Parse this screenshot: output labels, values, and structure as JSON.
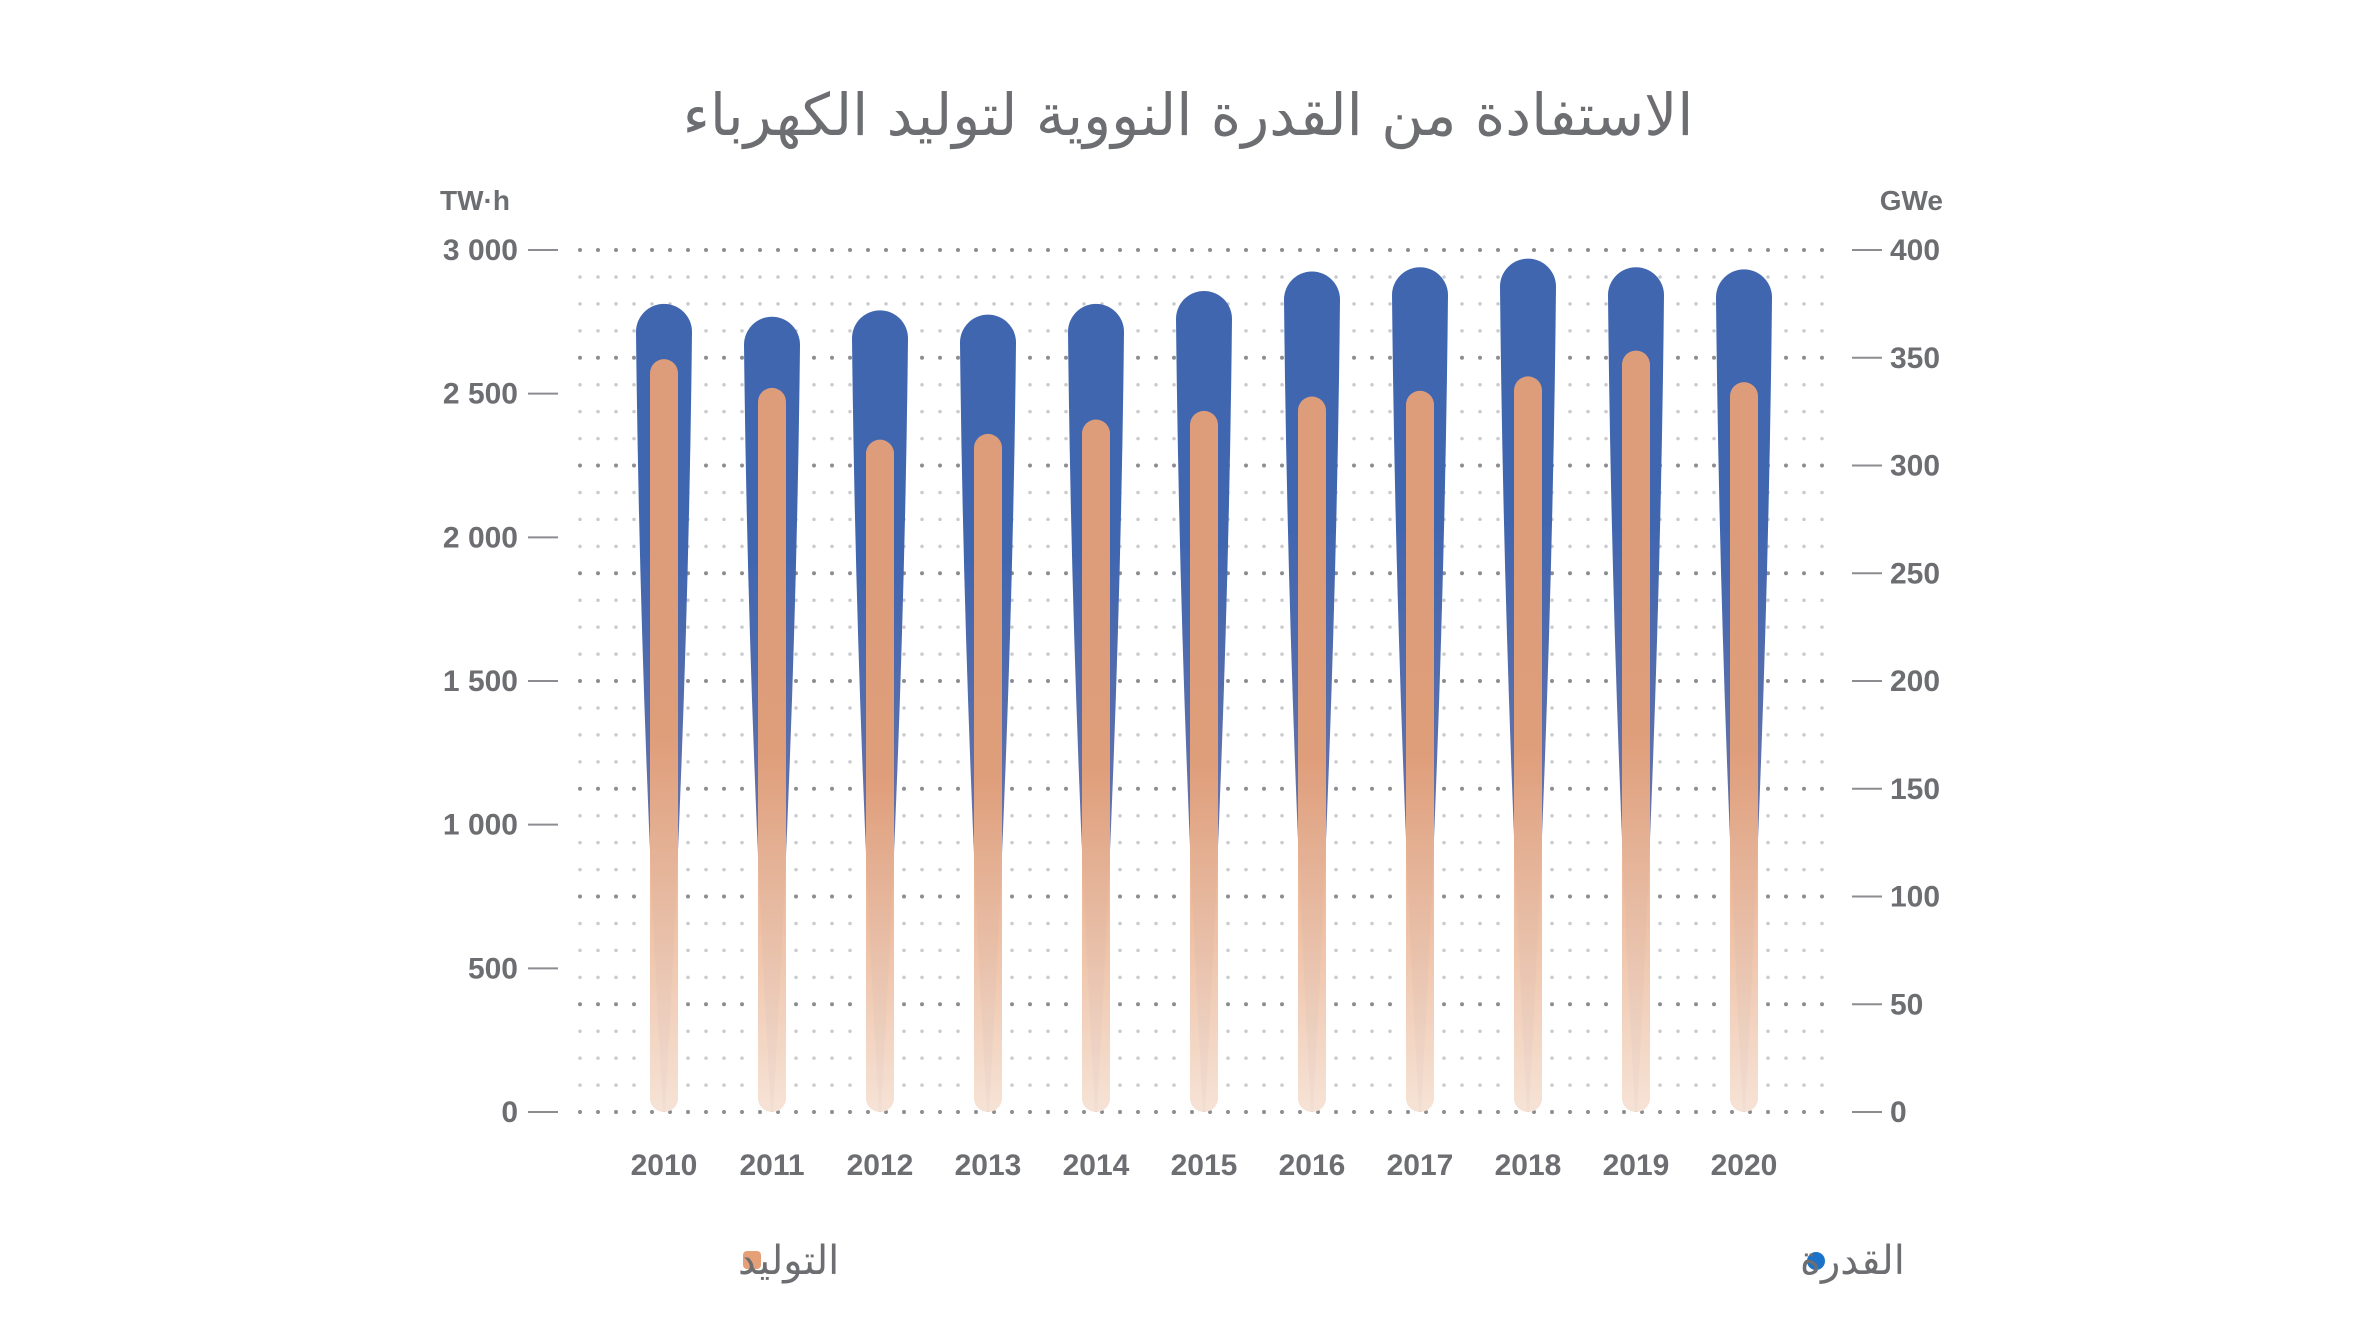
{
  "chart_data": {
    "type": "bar",
    "title": "الاستفادة من القدرة النووية لتوليد الكهرباء",
    "categories": [
      "2010",
      "2011",
      "2012",
      "2013",
      "2014",
      "2015",
      "2016",
      "2017",
      "2018",
      "2019",
      "2020"
    ],
    "left_axis": {
      "unit": "TW·h",
      "ylim": [
        0,
        3000
      ],
      "ticks": [
        0,
        500,
        1000,
        1500,
        2000,
        2500,
        3000
      ],
      "tick_labels": [
        "0",
        "500",
        "1 000",
        "1 500",
        "2 000",
        "2 500",
        "3 000"
      ]
    },
    "right_axis": {
      "unit": "GWe",
      "ylim": [
        0,
        400
      ],
      "ticks": [
        0,
        50,
        100,
        150,
        200,
        250,
        300,
        350,
        400
      ],
      "tick_labels": [
        "0",
        "50",
        "100",
        "150",
        "200",
        "250",
        "300",
        "350",
        "400"
      ]
    },
    "series": [
      {
        "name": "القدرة",
        "axis": "right",
        "color": "#4066b0",
        "values": [
          375,
          369,
          372,
          370,
          375,
          381,
          390,
          392,
          396,
          392,
          391
        ]
      },
      {
        "name": "التوليد",
        "axis": "left",
        "color": "#e6a077",
        "values": [
          2620,
          2520,
          2340,
          2360,
          2410,
          2440,
          2490,
          2510,
          2560,
          2650,
          2540
        ]
      }
    ],
    "grid": true,
    "legend_position": "bottom",
    "legend_marker_colors": {
      "القدرة": "#1a73c9",
      "التوليد": "#e6a077"
    }
  }
}
